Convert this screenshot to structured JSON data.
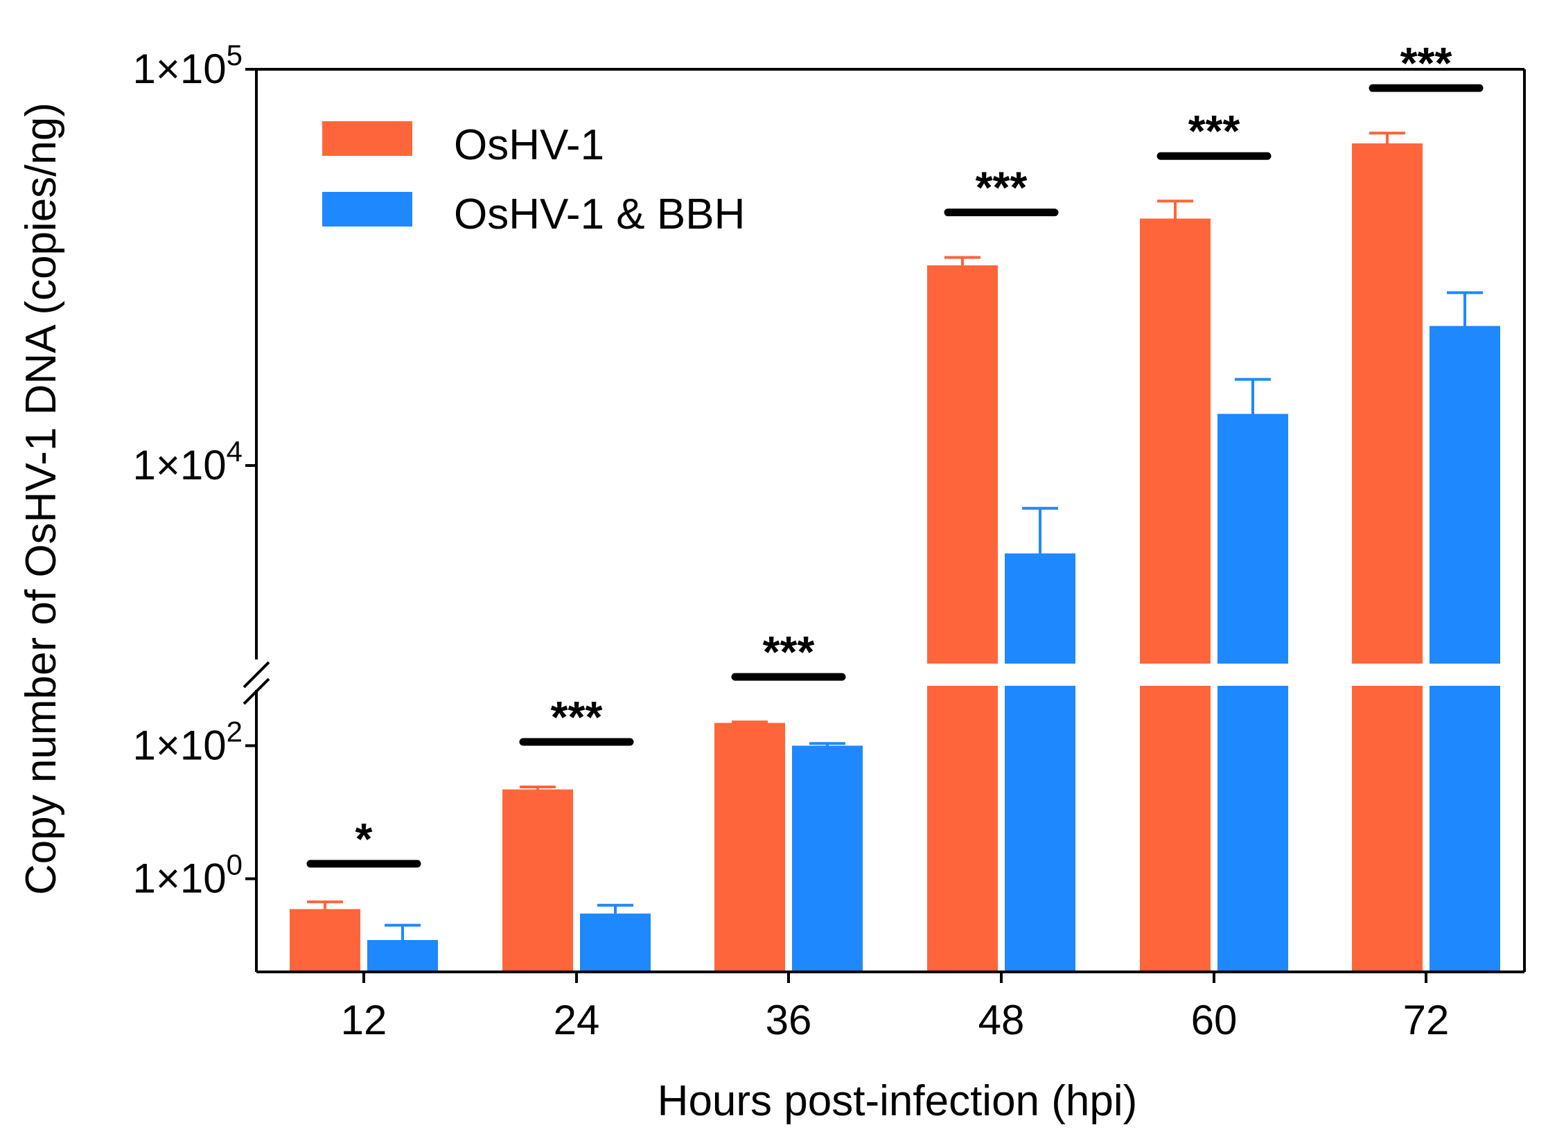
{
  "chart_data": {
    "type": "bar",
    "title": "",
    "xlabel": "Hours post-infection (hpi)",
    "ylabel": "Copy number of OsHV-1 DNA (copies/ng)",
    "yscale": "log, broken axis",
    "y_ticks": [
      {
        "label": "1×10",
        "exp": "0"
      },
      {
        "label": "1×10",
        "exp": "2"
      },
      {
        "label": "1×10",
        "exp": "4"
      },
      {
        "label": "1×10",
        "exp": "5"
      }
    ],
    "categories": [
      "12",
      "24",
      "36",
      "48",
      "60",
      "72"
    ],
    "series": [
      {
        "name": "OsHV-1",
        "color": "#ff653a",
        "values": [
          0.35,
          22,
          220,
          32000,
          42000,
          65000
        ],
        "errors": [
          0.1,
          2,
          8,
          1500,
          4500,
          4000
        ]
      },
      {
        "name": "OsHV-1 & BBH",
        "color": "#1e88fe",
        "values": [
          0.12,
          0.3,
          100,
          6000,
          13500,
          22500
        ],
        "errors": [
          0.08,
          0.1,
          8,
          1800,
          3000,
          4800
        ]
      }
    ],
    "significance": [
      "*",
      "***",
      "***",
      "***",
      "***",
      "***"
    ],
    "legend_position": "top-left"
  }
}
